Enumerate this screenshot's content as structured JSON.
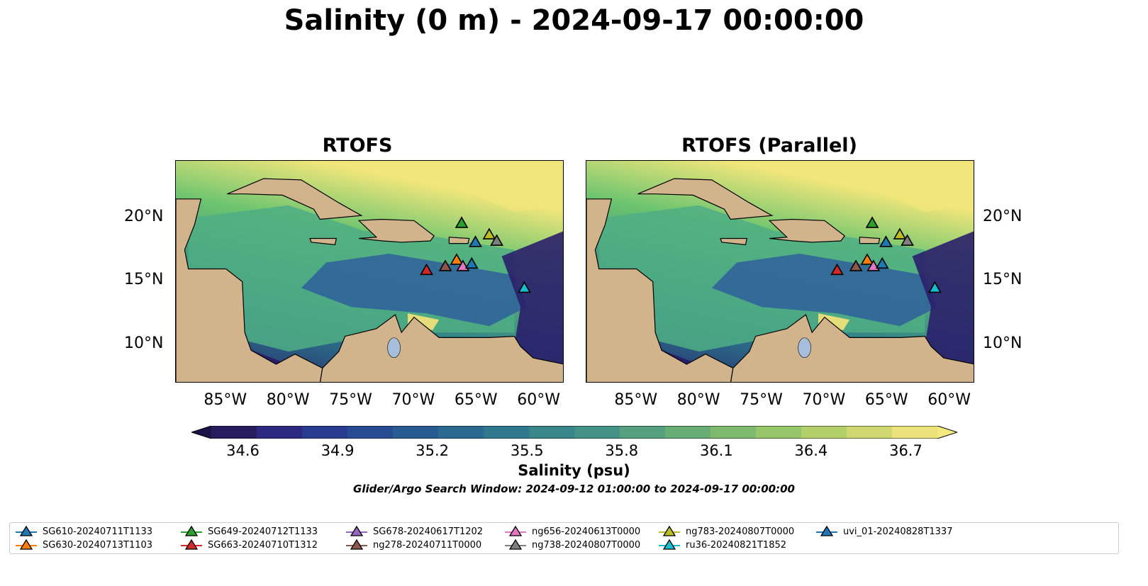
{
  "title": "Salinity (0 m) - 2024-09-17 00:00:00",
  "panels": [
    {
      "title": "RTOFS"
    },
    {
      "title": "RTOFS (Parallel)"
    }
  ],
  "map_extent": {
    "lon": [
      -89,
      -58
    ],
    "lat": [
      7,
      24.5
    ]
  },
  "lon_ticks": [
    "85°W",
    "80°W",
    "75°W",
    "70°W",
    "65°W",
    "60°W"
  ],
  "lon_tick_values": [
    -85,
    -80,
    -75,
    -70,
    -65,
    -60
  ],
  "lat_ticks": [
    "20°N",
    "15°N",
    "10°N"
  ],
  "lat_tick_values": [
    20,
    15,
    10
  ],
  "colors": {
    "land": "#d2b48c",
    "lake": "#a6bddb",
    "ocean_low": "#2a1f6b",
    "ocean_mid": "#2b7a8c",
    "ocean_high": "#f0e67a"
  },
  "colorbar": {
    "label": "Salinity (psu)",
    "ticks": [
      "34.6",
      "34.9",
      "35.2",
      "35.5",
      "35.8",
      "36.1",
      "36.4",
      "36.7"
    ],
    "tick_values": [
      34.6,
      34.9,
      35.2,
      35.5,
      35.8,
      36.1,
      36.4,
      36.7
    ],
    "vmin": 34.5,
    "vmax": 36.8
  },
  "window_note": "Glider/Argo Search Window: 2024-09-12 01:00:00 to 2024-09-17 00:00:00",
  "markers": [
    {
      "lon": -66.2,
      "lat": 19.6,
      "color": "#2ca02c"
    },
    {
      "lon": -64.0,
      "lat": 18.7,
      "color": "#bcbd22"
    },
    {
      "lon": -63.4,
      "lat": 18.2,
      "color": "#7f7f7f"
    },
    {
      "lon": -65.1,
      "lat": 18.1,
      "color": "#1f77b4"
    },
    {
      "lon": -69.0,
      "lat": 15.9,
      "color": "#d62728"
    },
    {
      "lon": -67.5,
      "lat": 16.2,
      "color": "#8c564b"
    },
    {
      "lon": -66.6,
      "lat": 16.7,
      "color": "#ff7f0e"
    },
    {
      "lon": -66.1,
      "lat": 16.2,
      "color": "#e377c2"
    },
    {
      "lon": -65.4,
      "lat": 16.4,
      "color": "#1f77b4"
    },
    {
      "lon": -61.2,
      "lat": 14.5,
      "color": "#17becf"
    }
  ],
  "legend": [
    {
      "label": "SG610-20240711T1133",
      "color": "#1f77b4"
    },
    {
      "label": "SG630-20240713T1103",
      "color": "#ff7f0e"
    },
    {
      "label": "SG649-20240712T1133",
      "color": "#2ca02c"
    },
    {
      "label": "SG663-20240710T1312",
      "color": "#d62728"
    },
    {
      "label": "SG678-20240617T1202",
      "color": "#9467bd"
    },
    {
      "label": "ng278-20240711T0000",
      "color": "#8c564b"
    },
    {
      "label": "ng656-20240613T0000",
      "color": "#e377c2"
    },
    {
      "label": "ng738-20240807T0000",
      "color": "#7f7f7f"
    },
    {
      "label": "ng783-20240807T0000",
      "color": "#bcbd22"
    },
    {
      "label": "ru36-20240821T1852",
      "color": "#17becf"
    },
    {
      "label": "uvi_01-20240828T1337",
      "color": "#1f77b4"
    }
  ]
}
